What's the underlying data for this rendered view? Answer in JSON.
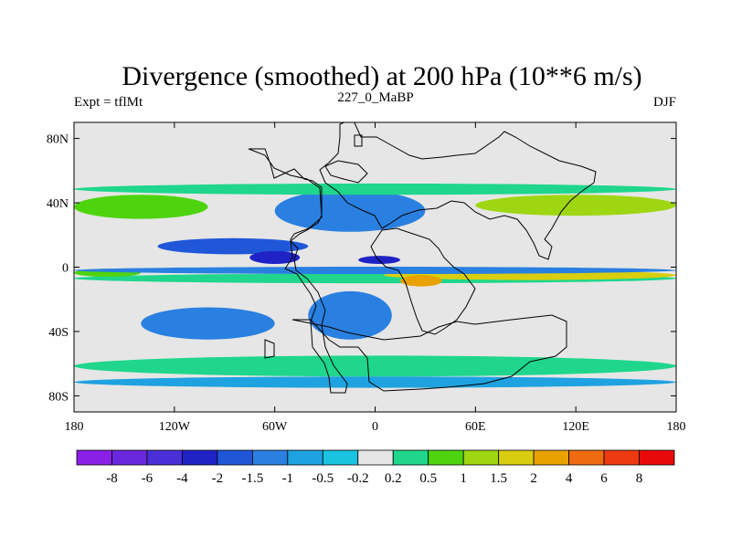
{
  "chart_data": {
    "type": "heatmap",
    "title": "Divergence (smoothed) at 200 hPa (10**6 m/s)",
    "subtitle_left": "Expt = tflMt",
    "subtitle_center": "227_0_MaBP",
    "subtitle_right": "DJF",
    "xlabel": "",
    "ylabel": "",
    "xlim": [
      -180,
      180
    ],
    "ylim": [
      -90,
      90
    ],
    "x_ticks": [
      {
        "value": -180,
        "label": "180"
      },
      {
        "value": -120,
        "label": "120W"
      },
      {
        "value": -60,
        "label": "60W"
      },
      {
        "value": 0,
        "label": "0"
      },
      {
        "value": 60,
        "label": "60E"
      },
      {
        "value": 120,
        "label": "120E"
      },
      {
        "value": 180,
        "label": "180"
      }
    ],
    "y_ticks": [
      {
        "value": 80,
        "label": "80N"
      },
      {
        "value": 40,
        "label": "40N"
      },
      {
        "value": 0,
        "label": "0"
      },
      {
        "value": -40,
        "label": "40S"
      },
      {
        "value": -80,
        "label": "80S"
      }
    ],
    "colorbar": {
      "levels": [
        "-8",
        "-6",
        "-4",
        "-2",
        "-1.5",
        "-1",
        "-0.5",
        "-0.2",
        "0.2",
        "0.5",
        "1",
        "1.5",
        "2",
        "4",
        "6",
        "8"
      ],
      "colors": [
        "#8a1fe6",
        "#6a28dc",
        "#4a2fd6",
        "#1f23c6",
        "#1f57d8",
        "#2a80e0",
        "#1fa2e0",
        "#18c4e0",
        "#e6e6e6",
        "#1fd68c",
        "#4ed40e",
        "#9ed612",
        "#d9cd10",
        "#e8a200",
        "#ef6a10",
        "#ee3a10",
        "#e80a0a"
      ]
    },
    "regions": [
      {
        "sign": "pos",
        "level": 0.5,
        "lon": [
          -180,
          180
        ],
        "lat": [
          -10,
          -4
        ]
      },
      {
        "sign": "pos",
        "level": 2,
        "lon": [
          5,
          180
        ],
        "lat": [
          -8,
          -2
        ]
      },
      {
        "sign": "pos",
        "level": 4,
        "lon": [
          15,
          40
        ],
        "lat": [
          -12,
          -5
        ]
      },
      {
        "sign": "pos",
        "level": 1,
        "lon": [
          -180,
          -140
        ],
        "lat": [
          -6,
          -1
        ]
      },
      {
        "sign": "neg",
        "level": -1.5,
        "lon": [
          -130,
          -40
        ],
        "lat": [
          8,
          18
        ]
      },
      {
        "sign": "neg",
        "level": -2,
        "lon": [
          -75,
          -45
        ],
        "lat": [
          2,
          10
        ]
      },
      {
        "sign": "neg",
        "level": -2,
        "lon": [
          -10,
          15
        ],
        "lat": [
          2,
          7
        ]
      },
      {
        "sign": "neg",
        "level": -2,
        "lon": [
          -40,
          0
        ],
        "lat": [
          28,
          42
        ]
      },
      {
        "sign": "neg",
        "level": -1,
        "lon": [
          -60,
          30
        ],
        "lat": [
          22,
          48
        ]
      },
      {
        "sign": "pos",
        "level": 1,
        "lon": [
          -180,
          -100
        ],
        "lat": [
          30,
          45
        ]
      },
      {
        "sign": "pos",
        "level": 1.5,
        "lon": [
          60,
          180
        ],
        "lat": [
          32,
          45
        ]
      },
      {
        "sign": "pos",
        "level": 0.5,
        "lon": [
          -180,
          180
        ],
        "lat": [
          45,
          52
        ]
      },
      {
        "sign": "neg",
        "level": -1,
        "lon": [
          -140,
          -60
        ],
        "lat": [
          -45,
          -25
        ]
      },
      {
        "sign": "neg",
        "level": -1,
        "lon": [
          -40,
          10
        ],
        "lat": [
          -45,
          -15
        ]
      },
      {
        "sign": "pos",
        "level": 0.5,
        "lon": [
          -180,
          180
        ],
        "lat": [
          -68,
          -55
        ]
      },
      {
        "sign": "neg",
        "level": -0.5,
        "lon": [
          -180,
          180
        ],
        "lat": [
          -75,
          -68
        ]
      },
      {
        "sign": "neg",
        "level": -1,
        "lon": [
          -180,
          180
        ],
        "lat": [
          -4,
          0
        ]
      }
    ]
  }
}
